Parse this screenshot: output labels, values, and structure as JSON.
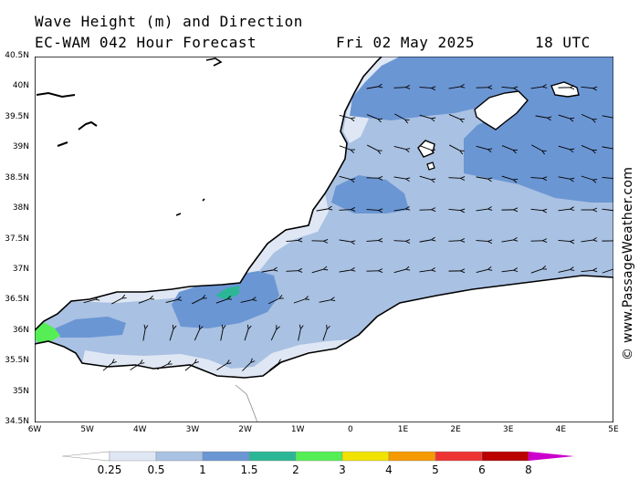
{
  "header": {
    "title": "Wave Height (m) and Direction",
    "model": "EC-WAM 042 Hour Forecast",
    "date": "Fri 02 May 2025",
    "time": "18 UTC"
  },
  "credit": "© www.PassageWeather.com",
  "axes": {
    "lat_labels": [
      "40.5N",
      "40N",
      "39.5N",
      "39N",
      "38.5N",
      "38N",
      "37.5N",
      "37N",
      "36.5N",
      "36N",
      "35.5N",
      "35N",
      "34.5N"
    ],
    "lon_labels": [
      "6W",
      "5W",
      "4W",
      "3W",
      "2W",
      "1W",
      "0",
      "1E",
      "2E",
      "3E",
      "4E",
      "5E"
    ]
  },
  "legend": {
    "labels": [
      "0.25",
      "0.5",
      "1",
      "1.5",
      "2",
      "3",
      "4",
      "5",
      "6",
      "8"
    ],
    "colors": [
      "#ffffff",
      "#dfe7f4",
      "#a9c1e2",
      "#6b96d4",
      "#2bb796",
      "#55ee55",
      "#f2e200",
      "#f59a00",
      "#ee3333",
      "#bb0000",
      "#cc00cc"
    ]
  },
  "colors": {
    "land": "#ffffff",
    "sea_low": "#dfe7f4",
    "sea_mid": "#a9c1e2",
    "sea_high": "#6b96d4",
    "sea_peak": "#2bb796",
    "sea_max": "#55ee55"
  }
}
